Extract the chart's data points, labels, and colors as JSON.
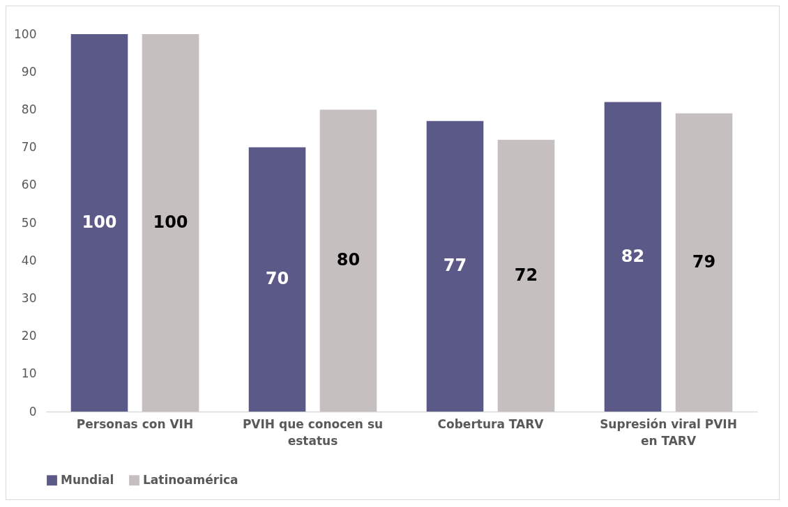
{
  "chart_data": {
    "type": "bar",
    "categories": [
      "Personas con VIH",
      "PVIH que conocen su estatus",
      "Cobertura TARV",
      "Supresión viral PVIH en TARV"
    ],
    "series": [
      {
        "name": "Mundial",
        "color": "#5b5987",
        "values": [
          100,
          70,
          77,
          82
        ]
      },
      {
        "name": "Latinoamérica",
        "color": "#c6bfbf",
        "values": [
          100,
          80,
          72,
          79
        ]
      }
    ],
    "ylim": [
      0,
      100
    ],
    "yticks": [
      0,
      10,
      20,
      30,
      40,
      50,
      60,
      70,
      80,
      90,
      100
    ],
    "grid": false,
    "legend": "bottom",
    "data_labels": true
  }
}
